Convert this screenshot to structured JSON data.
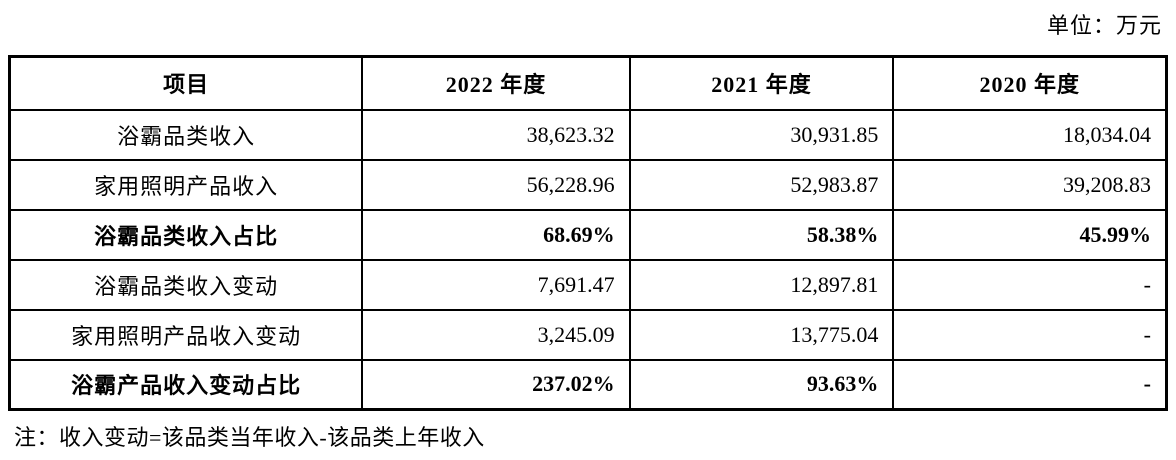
{
  "unit_label": "单位：万元",
  "note": "注：收入变动=该品类当年收入-该品类上年收入",
  "table": {
    "columns": [
      "项目",
      "2022 年度",
      "2021 年度",
      "2020 年度"
    ],
    "rows": [
      {
        "label": "浴霸品类收入",
        "values": [
          "38,623.32",
          "30,931.85",
          "18,034.04"
        ],
        "bold": false
      },
      {
        "label": "家用照明产品收入",
        "values": [
          "56,228.96",
          "52,983.87",
          "39,208.83"
        ],
        "bold": false
      },
      {
        "label": "浴霸品类收入占比",
        "values": [
          "68.69%",
          "58.38%",
          "45.99%"
        ],
        "bold": true
      },
      {
        "label": "浴霸品类收入变动",
        "values": [
          "7,691.47",
          "12,897.81",
          "-"
        ],
        "bold": false
      },
      {
        "label": "家用照明产品收入变动",
        "values": [
          "3,245.09",
          "13,775.04",
          "-"
        ],
        "bold": false
      },
      {
        "label": "浴霸产品收入变动占比",
        "values": [
          "237.02%",
          "93.63%",
          "-"
        ],
        "bold": true
      }
    ]
  }
}
